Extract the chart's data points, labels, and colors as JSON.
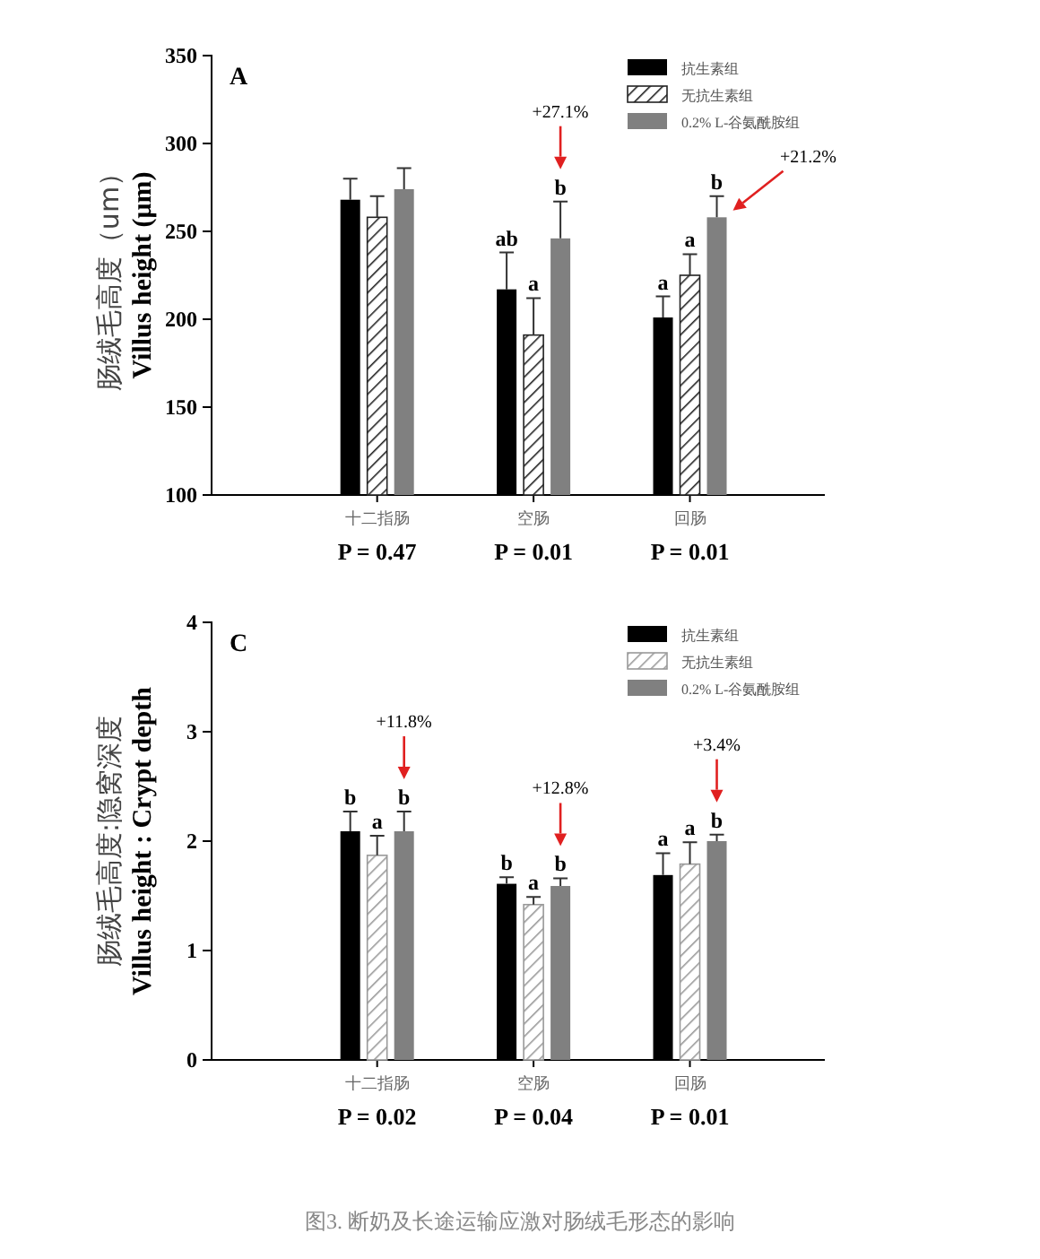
{
  "chart_data": [
    {
      "type": "bar",
      "title": "A",
      "ylabel": "肠绒毛高度（um）\nVillus height (μm)",
      "categories": [
        "十二指肠\nP = 0.47",
        "空肠\nP = 0.01",
        "回肠\nP = 0.01"
      ],
      "ylim": [
        100,
        350
      ],
      "yticks": [
        100,
        150,
        200,
        250,
        300,
        350
      ],
      "legend": "top right",
      "grid": false,
      "series": [
        {
          "name": "抗生素组",
          "color": "#000000",
          "values": [
            268,
            217,
            201
          ],
          "errors": [
            [
              268,
              280
            ],
            [
              217,
              238
            ],
            [
              201,
              213
            ]
          ],
          "value_labels": [
            null,
            "ab",
            "a"
          ]
        },
        {
          "name": "无抗生素组",
          "color": "#222222",
          "values": [
            258,
            191,
            225
          ],
          "errors": [
            [
              258,
              270
            ],
            [
              191,
              212
            ],
            [
              225,
              237
            ]
          ],
          "value_labels": [
            null,
            "a",
            "a"
          ]
        },
        {
          "name": "0.2% L-谷氨酰胺组",
          "color": "#808080",
          "values": [
            274,
            246,
            258
          ],
          "errors": [
            [
              274,
              286
            ],
            [
              246,
              267
            ],
            [
              258,
              270
            ]
          ],
          "value_labels": [
            null,
            "b",
            "b"
          ]
        }
      ],
      "annotations": [
        "+27.1%",
        "+21.2%"
      ]
    },
    {
      "type": "bar",
      "title": "C",
      "ylabel": "肠绒毛高度:隐窝深度\nVillus height : Crypt depth",
      "categories": [
        "十二指肠\nP = 0.02",
        "空肠\nP = 0.04",
        "回肠\nP = 0.01"
      ],
      "ylim": [
        0,
        4
      ],
      "yticks": [
        0,
        1,
        2,
        3,
        4
      ],
      "legend": "top right",
      "grid": false,
      "series": [
        {
          "name": "抗生素组",
          "color": "#000000",
          "values": [
            2.09,
            1.61,
            1.69
          ],
          "errors": [
            [
              2.09,
              2.27
            ],
            [
              1.61,
              1.67
            ],
            [
              1.69,
              1.89
            ]
          ],
          "value_labels": [
            "b",
            "b",
            "a"
          ]
        },
        {
          "name": "无抗生素组",
          "color": "#999999",
          "values": [
            1.87,
            1.42,
            1.79
          ],
          "errors": [
            [
              1.87,
              2.05
            ],
            [
              1.42,
              1.49
            ],
            [
              1.79,
              1.99
            ]
          ],
          "value_labels": [
            "a",
            "a",
            "a"
          ]
        },
        {
          "name": "0.2% L-谷氨酰胺组",
          "color": "#808080",
          "values": [
            2.09,
            1.59,
            2.0
          ],
          "errors": [
            [
              2.09,
              2.27
            ],
            [
              1.59,
              1.66
            ],
            [
              2.0,
              2.06
            ]
          ],
          "value_labels": [
            "b",
            "b",
            "b"
          ]
        }
      ],
      "annotations": [
        "+11.8%",
        "+12.8%",
        "+3.4%",
        "图3. 断奶及长途运输应激对肠绒毛形态的影响"
      ]
    }
  ]
}
